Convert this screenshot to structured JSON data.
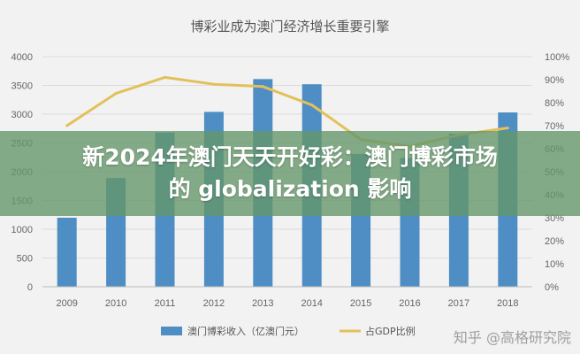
{
  "chart_data": {
    "type": "bar",
    "title": "博彩业成为澳门经济增长重要引擎",
    "categories": [
      "2009",
      "2010",
      "2011",
      "2012",
      "2013",
      "2014",
      "2015",
      "2016",
      "2017",
      "2018"
    ],
    "series": [
      {
        "name": "澳门博彩收入（亿澳门元）",
        "type": "bar",
        "axis": "left",
        "values": [
          1200,
          1890,
          2680,
          3040,
          3610,
          3520,
          2310,
          2240,
          2660,
          3030
        ]
      },
      {
        "name": "占GDP比例",
        "type": "line",
        "axis": "right",
        "values": [
          70,
          84,
          91,
          88,
          87,
          79,
          64,
          61,
          66,
          69
        ]
      }
    ],
    "y_left": {
      "range": [
        0,
        4000
      ],
      "ticks": [
        "0",
        "500",
        "1000",
        "1500",
        "2000",
        "2500",
        "3000",
        "3500",
        "4000"
      ]
    },
    "y_right": {
      "range": [
        0,
        100
      ],
      "ticks": [
        "0%",
        "10%",
        "20%",
        "30%",
        "40%",
        "50%",
        "60%",
        "70%",
        "80%",
        "90%",
        "100%"
      ]
    },
    "grid": true,
    "legend_position": "bottom",
    "colors": {
      "bar": "#4e8ec4",
      "line": "#e2c15a"
    }
  },
  "overlay": {
    "headline_line1": "新2024年澳门天天开好彩：澳门博彩市场",
    "headline_line2": "的 globalization 影响"
  },
  "watermark": "知乎 @高格研究院"
}
